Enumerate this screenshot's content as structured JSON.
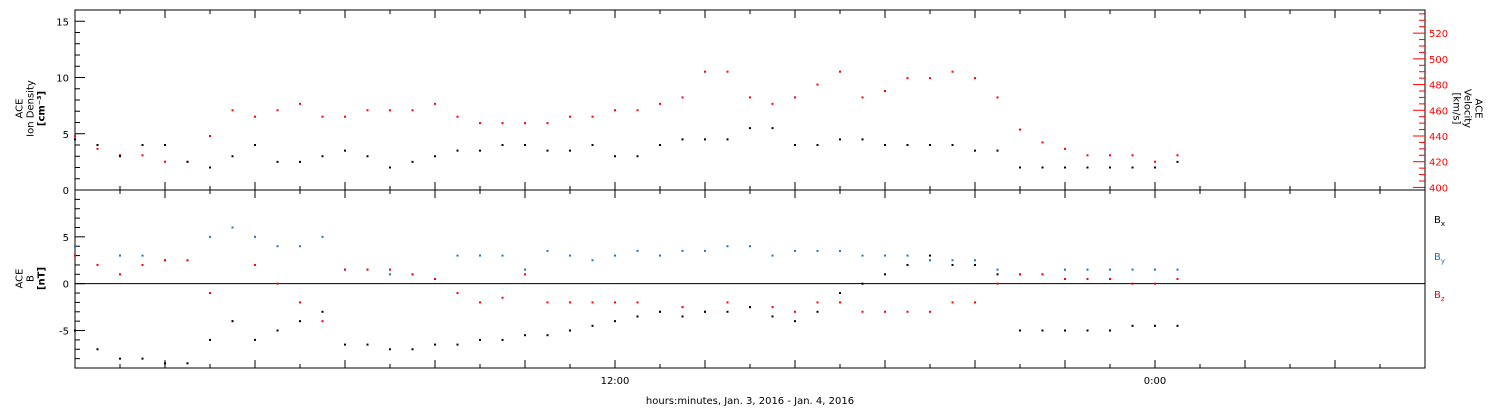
{
  "chart_data": [
    {
      "type": "scatter",
      "panel": "top",
      "left_axis": {
        "label_lines": [
          "ACE",
          "Ion Density",
          "[cm⁻³]"
        ],
        "ylim": [
          0,
          16
        ],
        "ticks": [
          "0",
          "5",
          "10",
          "15"
        ],
        "color": "#000000"
      },
      "right_axis": {
        "label_lines": [
          "ACE",
          "Velocity",
          "[km/s]"
        ],
        "ylim": [
          398,
          538
        ],
        "ticks": [
          "400",
          "420",
          "440",
          "460",
          "480",
          "500",
          "520"
        ],
        "color": "#ff0000"
      },
      "x_range_hours": [
        0,
        30
      ],
      "series": [
        {
          "axis": "left",
          "color": "#000000",
          "x": [
            0,
            0.5,
            1,
            1.5,
            2,
            2.5,
            3,
            3.5,
            4,
            4.5,
            5,
            5.5,
            6,
            6.5,
            7,
            7.5,
            8,
            8.5,
            9,
            9.5,
            10,
            10.5,
            11,
            11.5,
            12,
            12.5,
            13,
            13.5,
            14,
            14.5,
            15,
            15.5,
            16,
            16.5,
            17,
            17.5,
            18,
            18.5,
            19,
            19.5,
            20,
            20.5,
            21,
            21.5,
            22,
            22.5,
            23,
            23.5,
            24,
            24.5
          ],
          "y": [
            4.5,
            4,
            3,
            4,
            4,
            2.5,
            2,
            3,
            4,
            2.5,
            2.5,
            3,
            3.5,
            3,
            2,
            2.5,
            3,
            3.5,
            3.5,
            4,
            4,
            3.5,
            3.5,
            4,
            3,
            3,
            4,
            4.5,
            4.5,
            4.5,
            5.5,
            5.5,
            4,
            4,
            4.5,
            4.5,
            4,
            4,
            4,
            4,
            3.5,
            3.5,
            2,
            2,
            2,
            2,
            2,
            2,
            2,
            2.5
          ]
        },
        {
          "axis": "right",
          "color": "#ff0000",
          "x": [
            0,
            0.5,
            1,
            1.5,
            2,
            2.5,
            3,
            3.5,
            4,
            4.5,
            5,
            5.5,
            6,
            6.5,
            7,
            7.5,
            8,
            8.5,
            9,
            9.5,
            10,
            10.5,
            11,
            11.5,
            12,
            12.5,
            13,
            13.5,
            14,
            14.5,
            15,
            15.5,
            16,
            16.5,
            17,
            17.5,
            18,
            18.5,
            19,
            19.5,
            20,
            20.5,
            21,
            21.5,
            22,
            22.5,
            23,
            23.5,
            24,
            24.5
          ],
          "y": [
            440,
            430,
            425,
            425,
            420,
            420,
            440,
            460,
            455,
            460,
            465,
            455,
            455,
            460,
            460,
            460,
            465,
            455,
            450,
            450,
            450,
            450,
            455,
            455,
            460,
            460,
            465,
            470,
            490,
            490,
            470,
            465,
            470,
            480,
            490,
            470,
            475,
            485,
            485,
            490,
            485,
            470,
            445,
            435,
            430,
            425,
            425,
            425,
            420,
            425
          ]
        }
      ]
    },
    {
      "type": "scatter",
      "panel": "bottom",
      "left_axis": {
        "label_lines": [
          "ACE",
          "B",
          "[nT]"
        ],
        "ylim": [
          -9,
          10
        ],
        "ticks": [
          "-5",
          "0",
          "5"
        ],
        "color": "#000000"
      },
      "x_ticks": [
        "12:00",
        "0:00"
      ],
      "x_tick_hours": [
        12,
        24
      ],
      "x_range_hours": [
        0,
        30
      ],
      "xlabel": "hours:minutes, Jan.  3, 2016 - Jan.  4, 2016",
      "series": [
        {
          "name": "Bx",
          "label_main": "B",
          "label_sub": "x",
          "color": "#000000",
          "x": [
            0,
            0.5,
            1,
            1.5,
            2,
            2.5,
            3,
            3.5,
            4,
            4.5,
            5,
            5.5,
            6,
            6.5,
            7,
            7.5,
            8,
            8.5,
            9,
            9.5,
            10,
            10.5,
            11,
            11.5,
            12,
            12.5,
            13,
            13.5,
            14,
            14.5,
            15,
            15.5,
            16,
            16.5,
            17,
            17.5,
            18,
            18.5,
            19,
            19.5,
            20,
            20.5,
            21,
            21.5,
            22,
            22.5,
            23,
            23.5,
            24,
            24.5
          ],
          "y": [
            -5,
            -7,
            -8,
            -8,
            -8.5,
            -8.5,
            -6,
            -4,
            -6,
            -5,
            -4,
            -3,
            -6.5,
            -6.5,
            -7,
            -7,
            -6.5,
            -6.5,
            -6,
            -6,
            -5.5,
            -5.5,
            -5,
            -4.5,
            -4,
            -3.5,
            -3,
            -3.5,
            -3,
            -3,
            -2.5,
            -3.5,
            -4,
            -3,
            -1,
            0,
            1,
            2,
            3,
            2,
            2,
            1,
            -5,
            -5,
            -5,
            -5,
            -5,
            -4.5,
            -4.5,
            -4.5
          ]
        },
        {
          "name": "By",
          "label_main": "B",
          "label_sub": "y",
          "color": "#1874cd",
          "x": [
            0,
            0.5,
            1,
            1.5,
            2,
            2.5,
            3,
            3.5,
            4,
            4.5,
            5,
            5.5,
            6,
            6.5,
            7,
            7.5,
            8,
            8.5,
            9,
            9.5,
            10,
            10.5,
            11,
            11.5,
            12,
            12.5,
            13,
            13.5,
            14,
            14.5,
            15,
            15.5,
            16,
            16.5,
            17,
            17.5,
            18,
            18.5,
            19,
            19.5,
            20,
            20.5,
            21,
            21.5,
            22,
            22.5,
            23,
            23.5,
            24,
            24.5
          ],
          "y": [
            4,
            2,
            3,
            3,
            2.5,
            2.5,
            5,
            6,
            5,
            4,
            4,
            5,
            1.5,
            1.5,
            1,
            1,
            0.5,
            3,
            3,
            3,
            1.5,
            3.5,
            3,
            2.5,
            3,
            3.5,
            3,
            3.5,
            3.5,
            4,
            4,
            3,
            3.5,
            3.5,
            3.5,
            3,
            3,
            3,
            2.5,
            2.5,
            2.5,
            1.5,
            1,
            1,
            1.5,
            1.5,
            1.5,
            1.5,
            1.5,
            1.5
          ]
        },
        {
          "name": "Bz",
          "label_main": "B",
          "label_sub": "z",
          "color": "#ff0000",
          "x": [
            0,
            0.5,
            1,
            1.5,
            2,
            2.5,
            3,
            3.5,
            4,
            4.5,
            5,
            5.5,
            6,
            6.5,
            7,
            7.5,
            8,
            8.5,
            9,
            9.5,
            10,
            10.5,
            11,
            11.5,
            12,
            12.5,
            13,
            13.5,
            14,
            14.5,
            15,
            15.5,
            16,
            16.5,
            17,
            17.5,
            18,
            18.5,
            19,
            19.5,
            20,
            20.5,
            21,
            21.5,
            22,
            22.5,
            23,
            23.5,
            24,
            24.5
          ],
          "y": [
            3,
            2,
            1,
            2,
            2.5,
            2.5,
            -1,
            -4,
            2,
            0,
            -2,
            -4,
            1.5,
            1.5,
            1.5,
            1,
            0.5,
            -1,
            -2,
            -1.5,
            1,
            -2,
            -2,
            -2,
            -2,
            -2,
            -3,
            -2.5,
            -3,
            -2,
            -2.5,
            -2.5,
            -3,
            -2,
            -2,
            -3,
            -3,
            -3,
            -3,
            -2,
            -2,
            0,
            1,
            1,
            0.5,
            0.5,
            0.5,
            0,
            0,
            0.5
          ]
        }
      ]
    }
  ]
}
